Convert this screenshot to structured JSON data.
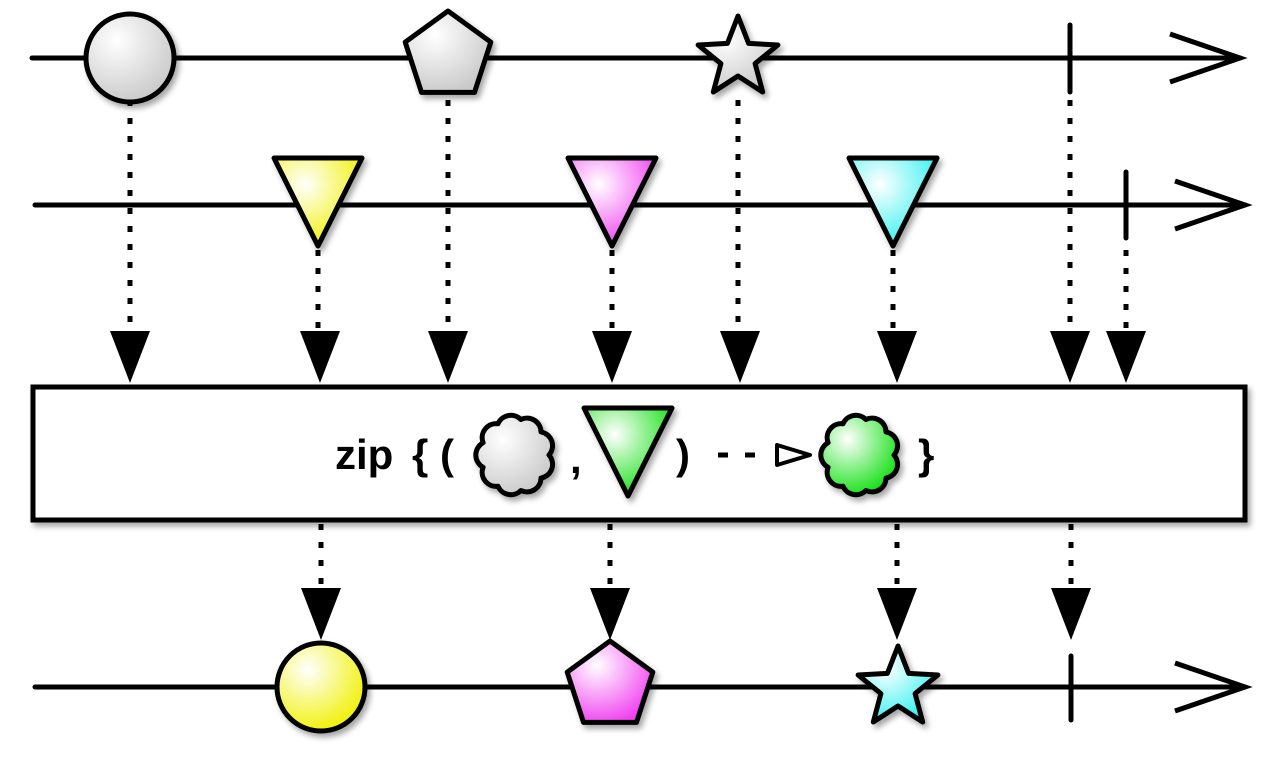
{
  "operator": {
    "name": "zip",
    "open": "{ (",
    "comma": ",",
    "close": ")",
    "end": "}"
  }
}
